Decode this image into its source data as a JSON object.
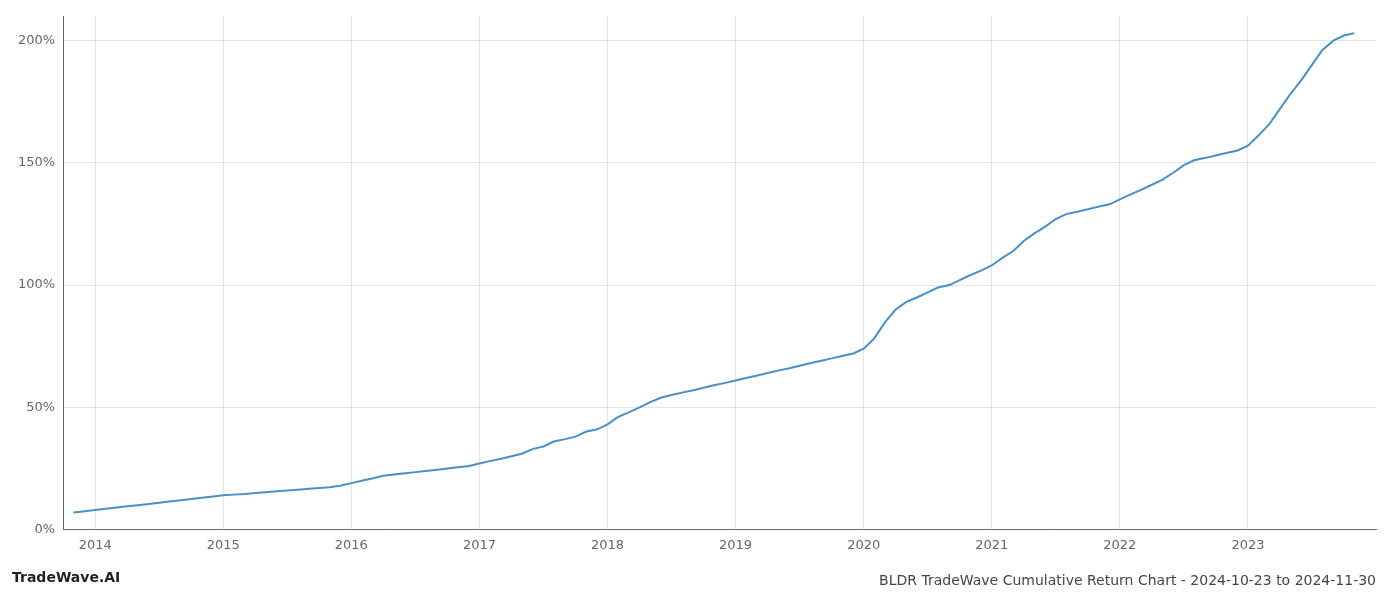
{
  "chart_data": {
    "type": "line",
    "title": "BLDR TradeWave Cumulative Return Chart - 2024-10-23 to 2024-11-30",
    "annotations": [
      "TradeWave.AI"
    ],
    "color": "#4a90c4",
    "grid": true,
    "x": [
      2013.83,
      2013.92,
      2014.0,
      2014.08,
      2014.17,
      2014.25,
      2014.33,
      2014.42,
      2014.5,
      2014.58,
      2014.67,
      2014.75,
      2014.83,
      2014.92,
      2015.0,
      2015.08,
      2015.17,
      2015.25,
      2015.33,
      2015.42,
      2015.5,
      2015.58,
      2015.67,
      2015.75,
      2015.83,
      2015.92,
      2016.0,
      2016.08,
      2016.17,
      2016.25,
      2016.33,
      2016.42,
      2016.5,
      2016.58,
      2016.67,
      2016.75,
      2016.83,
      2016.92,
      2017.0,
      2017.08,
      2017.17,
      2017.25,
      2017.33,
      2017.42,
      2017.5,
      2017.58,
      2017.67,
      2017.75,
      2017.83,
      2017.92,
      2018.0,
      2018.08,
      2018.17,
      2018.25,
      2018.33,
      2018.42,
      2018.5,
      2018.58,
      2018.67,
      2018.75,
      2018.83,
      2018.92,
      2019.0,
      2019.08,
      2019.17,
      2019.25,
      2019.33,
      2019.42,
      2019.5,
      2019.58,
      2019.67,
      2019.75,
      2019.83,
      2019.92,
      2020.0,
      2020.08,
      2020.17,
      2020.25,
      2020.33,
      2020.42,
      2020.5,
      2020.58,
      2020.67,
      2020.75,
      2020.83,
      2020.92,
      2021.0,
      2021.08,
      2021.17,
      2021.25,
      2021.33,
      2021.42,
      2021.5,
      2021.58,
      2021.67,
      2021.75,
      2021.83,
      2021.92,
      2022.0,
      2022.08,
      2022.17,
      2022.25,
      2022.33,
      2022.42,
      2022.5,
      2022.58,
      2022.67,
      2022.75,
      2022.83,
      2022.92,
      2023.0,
      2023.08,
      2023.17,
      2023.25,
      2023.33,
      2023.42,
      2023.5,
      2023.58,
      2023.67,
      2023.75,
      2023.83
    ],
    "values": [
      7,
      7.5,
      8,
      8.5,
      9,
      9.5,
      10,
      10.5,
      11,
      11.5,
      12,
      12.5,
      13,
      13.5,
      14,
      14.3,
      14.6,
      15,
      15.3,
      15.7,
      16,
      16.3,
      16.7,
      17,
      17.3,
      18,
      19,
      20,
      21,
      22,
      22.5,
      23,
      23.5,
      24,
      24.5,
      25,
      25.5,
      26,
      27,
      28,
      29,
      30,
      31,
      33,
      34,
      36,
      37,
      38,
      40,
      41,
      43,
      46,
      48,
      50,
      52,
      54,
      55,
      56,
      57,
      58,
      59,
      60,
      61,
      62,
      63,
      64,
      65,
      66,
      67,
      68,
      69,
      70,
      71,
      72,
      74,
      78,
      85,
      90,
      93,
      95,
      97,
      99,
      100,
      102,
      104,
      106,
      108,
      111,
      114,
      118,
      121,
      124,
      127,
      129,
      130,
      131,
      132,
      133,
      135,
      137,
      139,
      141,
      143,
      146,
      149,
      151,
      152,
      153,
      154,
      155,
      157,
      161,
      166,
      172,
      178,
      184,
      190,
      196,
      200,
      202,
      203
    ],
    "xlim": [
      2013.75,
      2024.0
    ],
    "xticks": [
      2014,
      2015,
      2016,
      2017,
      2018,
      2019,
      2020,
      2021,
      2022,
      2023
    ],
    "ylim": [
      0,
      210
    ],
    "yticks": [
      {
        "value": 0,
        "label": "0%"
      },
      {
        "value": 50,
        "label": "50%"
      },
      {
        "value": 100,
        "label": "100%"
      },
      {
        "value": 150,
        "label": "150%"
      },
      {
        "value": 200,
        "label": "200%"
      }
    ]
  }
}
